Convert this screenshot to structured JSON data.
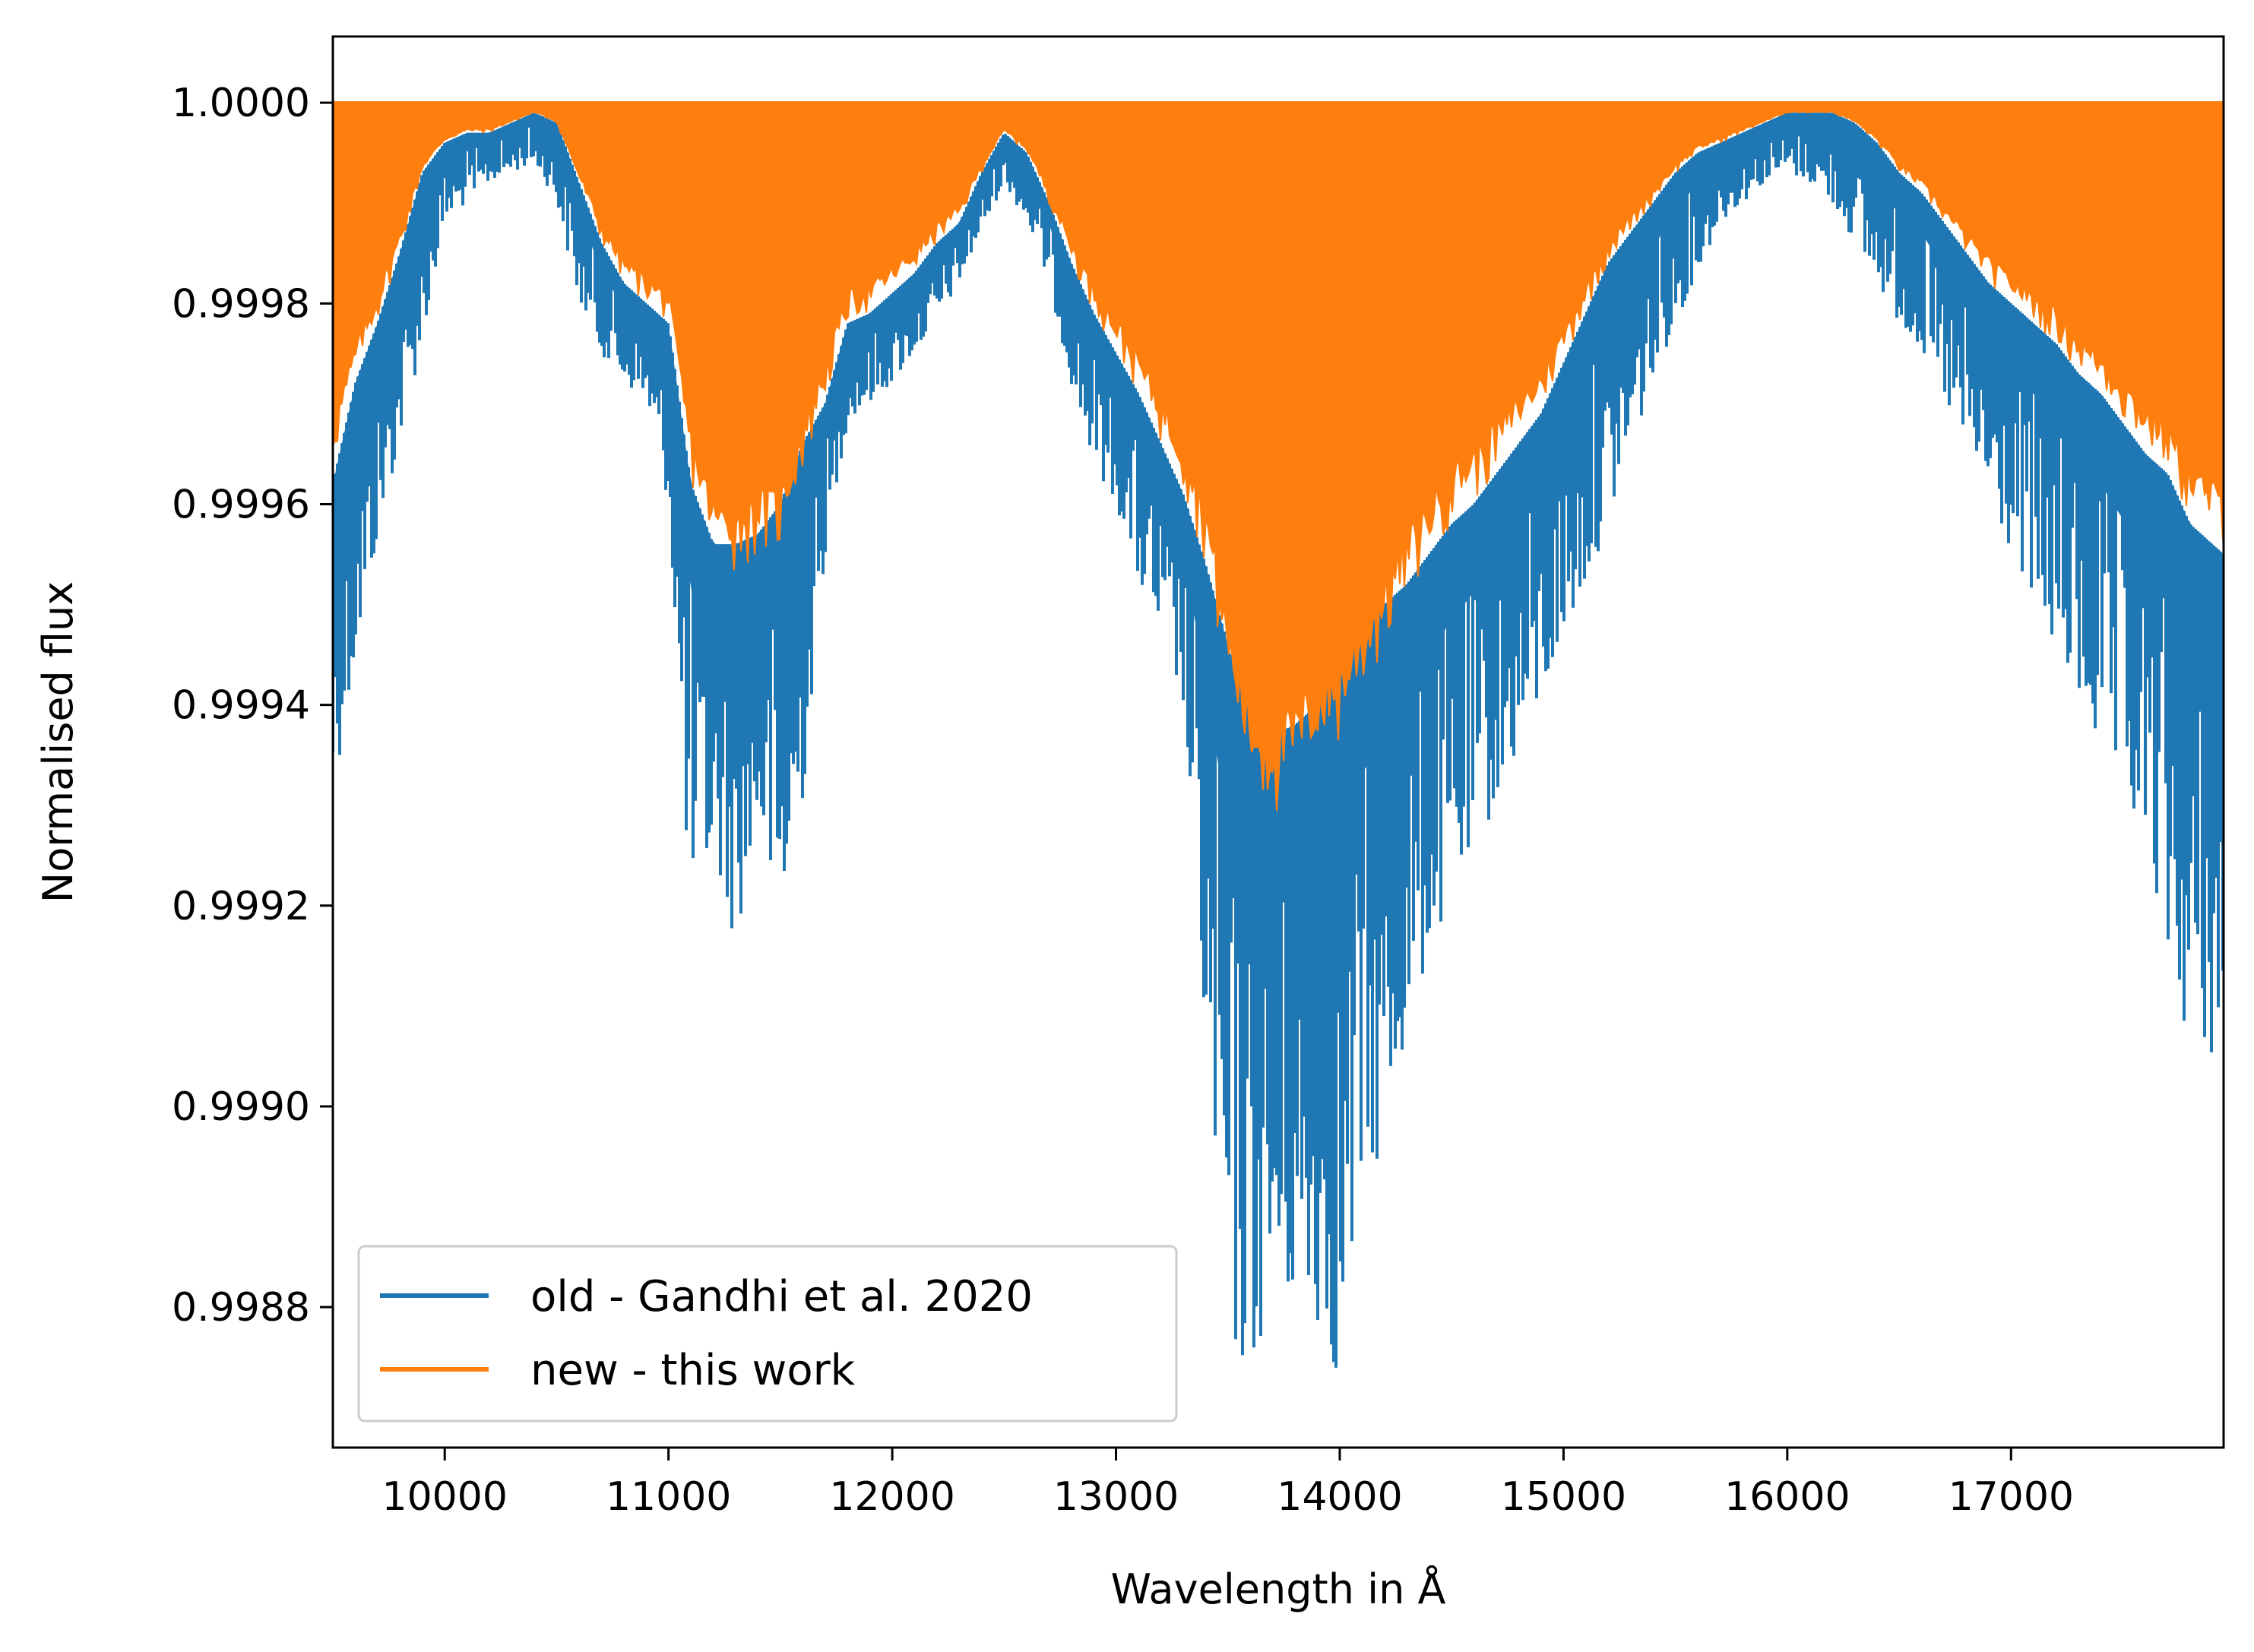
{
  "chart_data": {
    "type": "line",
    "xlabel": "Wavelength in Å",
    "ylabel": "Normalised flux",
    "xlim": [
      9500,
      17950
    ],
    "ylim": [
      0.99866,
      1.000066
    ],
    "xticks": [
      10000,
      11000,
      12000,
      13000,
      14000,
      15000,
      16000,
      17000
    ],
    "xtick_labels": [
      "10000",
      "11000",
      "12000",
      "13000",
      "14000",
      "15000",
      "16000",
      "17000"
    ],
    "yticks": [
      0.9988,
      0.999,
      0.9992,
      0.9994,
      0.9996,
      0.9998,
      1.0
    ],
    "ytick_labels": [
      "0.9988",
      "0.9990",
      "0.9992",
      "0.9994",
      "0.9996",
      "0.9998",
      "1.0000"
    ],
    "grid": false,
    "legend_position": "lower-left",
    "series": [
      {
        "name": "old - Gandhi et al. 2020",
        "color": "#1f77b4",
        "x": [
          9500,
          9600,
          9700,
          9800,
          9900,
          10000,
          10100,
          10200,
          10300,
          10400,
          10500,
          10600,
          10700,
          10800,
          10900,
          11000,
          11100,
          11200,
          11300,
          11400,
          11500,
          11600,
          11700,
          11800,
          11900,
          12000,
          12100,
          12200,
          12300,
          12400,
          12500,
          12600,
          12700,
          12800,
          12900,
          13000,
          13100,
          13200,
          13300,
          13400,
          13500,
          13600,
          13700,
          13800,
          13900,
          14000,
          14100,
          14200,
          14300,
          14400,
          14500,
          14600,
          14700,
          14800,
          14900,
          15000,
          15100,
          15200,
          15300,
          15400,
          15500,
          15600,
          15700,
          15800,
          15900,
          16000,
          16100,
          16200,
          16300,
          16400,
          16500,
          16600,
          16700,
          16800,
          16900,
          17000,
          17100,
          17200,
          17300,
          17400,
          17500,
          17600,
          17700,
          17800,
          17950
        ],
        "y_upper": [
          0.99962,
          0.99972,
          0.99978,
          0.99985,
          0.99993,
          0.99996,
          0.99997,
          0.99997,
          0.99998,
          0.99999,
          0.99998,
          0.99992,
          0.99986,
          0.99982,
          0.9998,
          0.99978,
          0.99962,
          0.99956,
          0.99956,
          0.99957,
          0.9996,
          0.99966,
          0.9997,
          0.99978,
          0.99979,
          0.99981,
          0.99983,
          0.99986,
          0.99988,
          0.99993,
          0.99997,
          0.99995,
          0.9999,
          0.99984,
          0.99979,
          0.99975,
          0.99971,
          0.99966,
          0.99961,
          0.99954,
          0.99946,
          0.99939,
          0.99937,
          0.99938,
          0.9994,
          0.99944,
          0.99947,
          0.9995,
          0.99952,
          0.99955,
          0.99958,
          0.9996,
          0.99963,
          0.99966,
          0.99969,
          0.99974,
          0.99979,
          0.99984,
          0.99987,
          0.9999,
          0.99993,
          0.99995,
          0.99996,
          0.99997,
          0.99998,
          0.99999,
          0.99999,
          0.99999,
          0.99998,
          0.99996,
          0.99993,
          0.99991,
          0.99988,
          0.99985,
          0.99982,
          0.9998,
          0.99978,
          0.99976,
          0.99973,
          0.99971,
          0.99968,
          0.99965,
          0.99963,
          0.99958,
          0.99955
        ],
        "y_lower": [
          0.99931,
          0.99944,
          0.99956,
          0.99966,
          0.99976,
          0.99988,
          0.9999,
          0.99992,
          0.99993,
          0.99994,
          0.9999,
          0.9998,
          0.99975,
          0.99972,
          0.9997,
          0.9996,
          0.99917,
          0.99925,
          0.99916,
          0.99928,
          0.99916,
          0.9993,
          0.99955,
          0.99968,
          0.9997,
          0.99972,
          0.99975,
          0.99978,
          0.99982,
          0.99987,
          0.99992,
          0.99988,
          0.99982,
          0.99972,
          0.99964,
          0.9996,
          0.99952,
          0.99946,
          0.9994,
          0.99905,
          0.99875,
          0.99873,
          0.9988,
          0.9988,
          0.99878,
          0.99872,
          0.99892,
          0.99895,
          0.99907,
          0.99915,
          0.9992,
          0.99925,
          0.9993,
          0.99935,
          0.9994,
          0.99946,
          0.99952,
          0.99958,
          0.99965,
          0.99972,
          0.99978,
          0.99983,
          0.99988,
          0.9999,
          0.99992,
          0.99993,
          0.99992,
          0.9999,
          0.99986,
          0.99982,
          0.99978,
          0.99975,
          0.9997,
          0.99965,
          0.9996,
          0.99955,
          0.9995,
          0.99945,
          0.9994,
          0.99935,
          0.9993,
          0.99925,
          0.99915,
          0.99905,
          0.99905
        ]
      },
      {
        "name": "new - this work",
        "color": "#ff7f0e",
        "x": [
          9500,
          9600,
          9700,
          9800,
          9900,
          10000,
          10100,
          10200,
          10300,
          10400,
          10500,
          10600,
          10700,
          10800,
          10900,
          11000,
          11100,
          11200,
          11300,
          11400,
          11500,
          11600,
          11700,
          11800,
          11900,
          12000,
          12100,
          12200,
          12300,
          12400,
          12500,
          12600,
          12700,
          12800,
          12900,
          13000,
          13100,
          13200,
          13300,
          13400,
          13500,
          13600,
          13700,
          13800,
          13900,
          14000,
          14100,
          14200,
          14300,
          14400,
          14500,
          14600,
          14700,
          14800,
          14900,
          15000,
          15100,
          15200,
          15300,
          15400,
          15500,
          15600,
          15700,
          15800,
          15900,
          16000,
          16100,
          16200,
          16300,
          16400,
          16500,
          16600,
          16700,
          16800,
          16900,
          17000,
          17100,
          17200,
          17300,
          17400,
          17500,
          17600,
          17700,
          17800,
          17950
        ],
        "y_top": 1.0,
        "y_lower": [
          0.99963,
          0.99972,
          0.99978,
          0.99985,
          0.99993,
          0.99996,
          0.99997,
          0.99997,
          0.99998,
          0.99999,
          0.99998,
          0.99992,
          0.99986,
          0.99982,
          0.9998,
          0.99978,
          0.99962,
          0.99954,
          0.99953,
          0.99955,
          0.99955,
          0.99963,
          0.9997,
          0.99978,
          0.99979,
          0.99981,
          0.99983,
          0.99986,
          0.99988,
          0.99993,
          0.99997,
          0.99995,
          0.9999,
          0.99984,
          0.99979,
          0.99975,
          0.99971,
          0.99966,
          0.99961,
          0.99954,
          0.9994,
          0.9993,
          0.99928,
          0.9993,
          0.99933,
          0.99935,
          0.9994,
          0.99945,
          0.9995,
          0.99954,
          0.99958,
          0.9996,
          0.99963,
          0.99966,
          0.99969,
          0.99974,
          0.99979,
          0.99984,
          0.99987,
          0.9999,
          0.99993,
          0.99995,
          0.99996,
          0.99997,
          0.99998,
          0.99999,
          0.99999,
          0.99999,
          0.99998,
          0.99996,
          0.99993,
          0.99991,
          0.99988,
          0.99985,
          0.99982,
          0.9998,
          0.99978,
          0.99976,
          0.99973,
          0.99971,
          0.99968,
          0.99965,
          0.99963,
          0.99958,
          0.99955
        ]
      }
    ]
  }
}
